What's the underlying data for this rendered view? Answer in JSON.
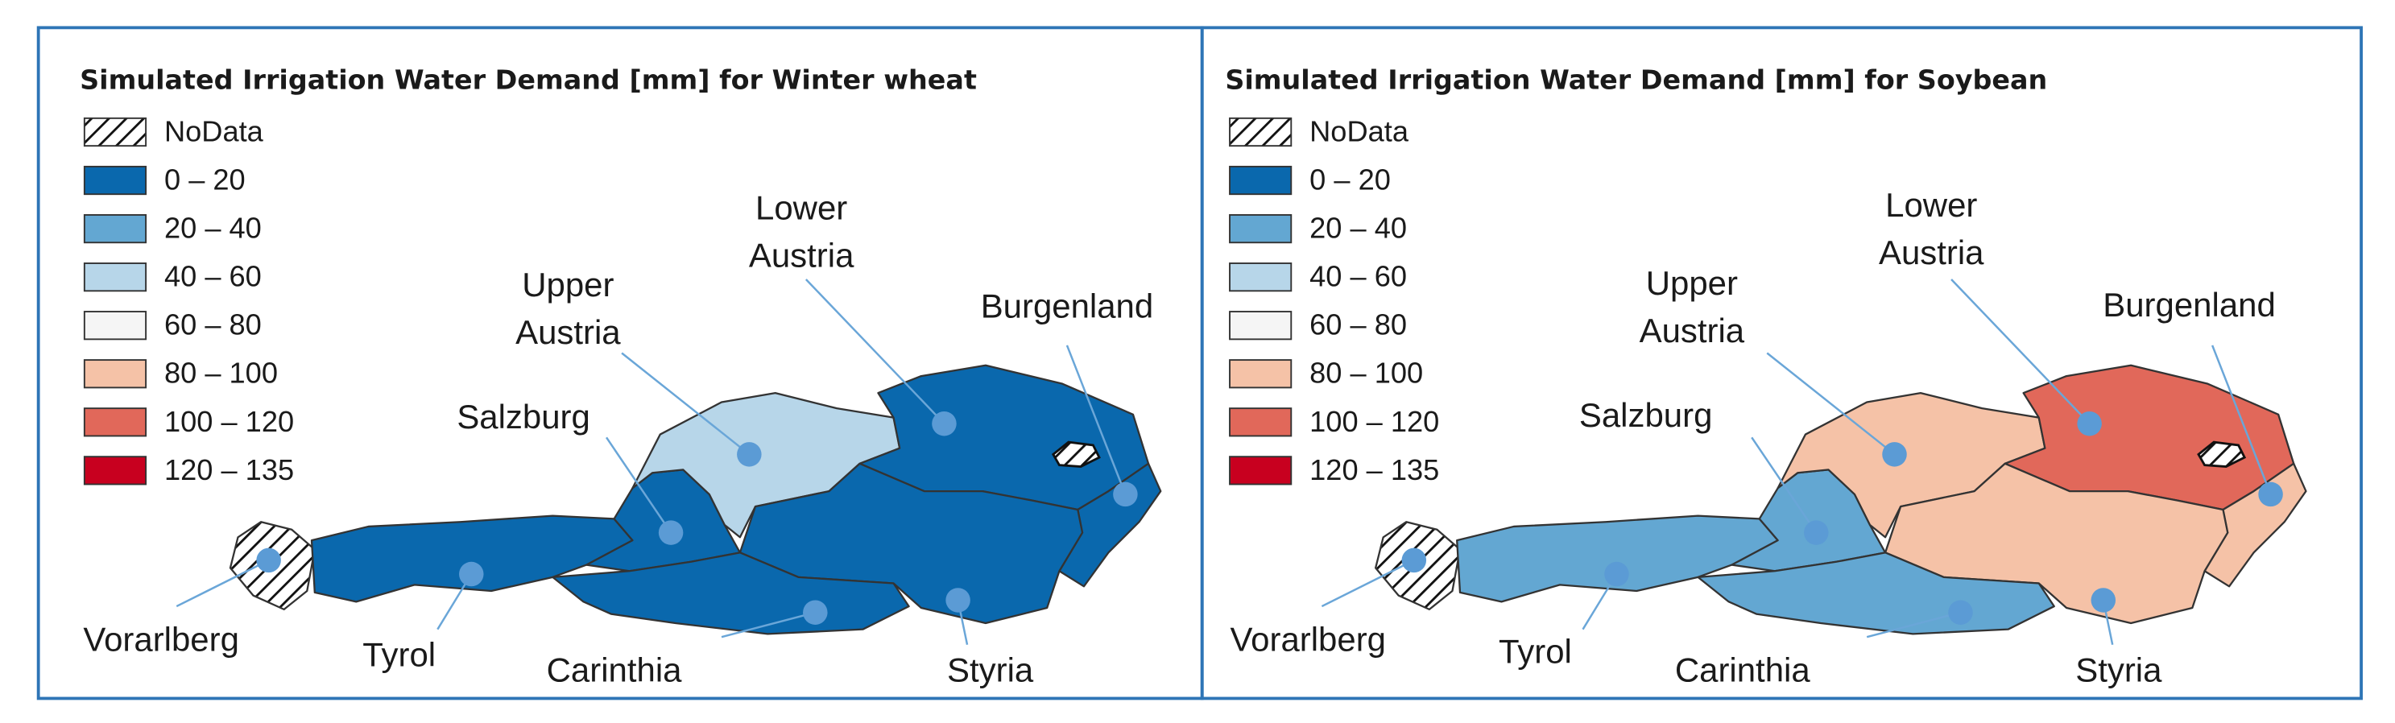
{
  "panels": [
    {
      "title": "Simulated Irrigation Water Demand [mm] for Winter wheat",
      "legend": [
        {
          "label": "NoData",
          "pattern": "hatch"
        },
        {
          "label": "0 – 20",
          "color": "#0a68ad"
        },
        {
          "label": "20 – 40",
          "color": "#63a7d2"
        },
        {
          "label": "40 – 60",
          "color": "#b7d6e9"
        },
        {
          "label": "60 – 80",
          "color": "#f5f5f5"
        },
        {
          "label": "80 – 100",
          "color": "#f5c2a7"
        },
        {
          "label": "100 – 120",
          "color": "#e1685a"
        },
        {
          "label": "120 – 135",
          "color": "#c8001f"
        }
      ],
      "regions": [
        {
          "label": [
            "Vorarlberg"
          ],
          "class": "NoData"
        },
        {
          "label": [
            "Tyrol"
          ],
          "class": "0 – 20"
        },
        {
          "label": [
            "Salzburg"
          ],
          "class": "0 – 20"
        },
        {
          "label": [
            "Upper",
            "Austria"
          ],
          "class": "40 – 60"
        },
        {
          "label": [
            "Lower",
            "Austria"
          ],
          "class": "0 – 20"
        },
        {
          "label": [
            "Burgenland"
          ],
          "class": "0 – 20"
        },
        {
          "label": [
            "Styria"
          ],
          "class": "0 – 20"
        },
        {
          "label": [
            "Carinthia"
          ],
          "class": "0 – 20"
        }
      ]
    },
    {
      "title": "Simulated Irrigation Water Demand [mm] for Soybean",
      "legend": [
        {
          "label": "NoData",
          "pattern": "hatch"
        },
        {
          "label": "0 – 20",
          "color": "#0a68ad"
        },
        {
          "label": "20 – 40",
          "color": "#63a7d2"
        },
        {
          "label": "40 – 60",
          "color": "#b7d6e9"
        },
        {
          "label": "60 – 80",
          "color": "#f5f5f5"
        },
        {
          "label": "80 – 100",
          "color": "#f5c2a7"
        },
        {
          "label": "100 – 120",
          "color": "#e1685a"
        },
        {
          "label": "120 – 135",
          "color": "#c8001f"
        }
      ],
      "regions": [
        {
          "label": [
            "Vorarlberg"
          ],
          "class": "NoData"
        },
        {
          "label": [
            "Tyrol"
          ],
          "class": "20 – 40"
        },
        {
          "label": [
            "Salzburg"
          ],
          "class": "20 – 40"
        },
        {
          "label": [
            "Upper",
            "Austria"
          ],
          "class": "80 – 100"
        },
        {
          "label": [
            "Lower",
            "Austria"
          ],
          "class": "100 – 120"
        },
        {
          "label": [
            "Burgenland"
          ],
          "class": "80 – 100"
        },
        {
          "label": [
            "Styria"
          ],
          "class": "80 – 100"
        },
        {
          "label": [
            "Carinthia"
          ],
          "class": "20 – 40"
        }
      ]
    }
  ]
}
